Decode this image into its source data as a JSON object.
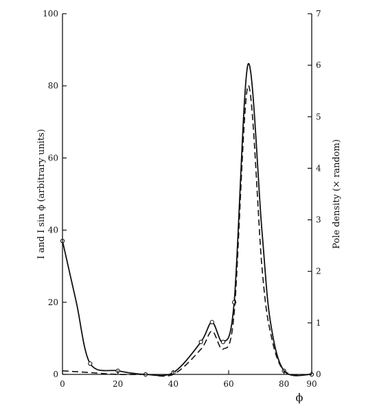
{
  "chart_data": {
    "type": "line",
    "xlabel": "ϕ",
    "ylabel_left": "I and I sin ϕ (arbitrary units)",
    "ylabel_right": "Pole density (× random)",
    "xlim": [
      0,
      90
    ],
    "ylim_left": [
      0,
      100
    ],
    "ylim_right": [
      0,
      7
    ],
    "x_ticks": [
      0,
      20,
      40,
      60,
      80,
      90
    ],
    "y_left_ticks": [
      0,
      20,
      40,
      60,
      80,
      100
    ],
    "y_right_ticks": [
      0,
      1,
      2,
      3,
      4,
      5,
      6,
      7
    ],
    "legend": "none",
    "grid": false,
    "series": [
      {
        "line_style": "solid",
        "markers": "open-circle",
        "axis": "left",
        "x": [
          0,
          5,
          10,
          20,
          30,
          40,
          50,
          54,
          58,
          62,
          67,
          72,
          75,
          80,
          90
        ],
        "y": [
          37,
          20,
          3,
          1,
          0,
          0.5,
          9,
          14.5,
          9,
          20,
          86,
          40,
          15,
          1,
          0
        ]
      },
      {
        "line_style": "dashed",
        "markers": "none",
        "axis": "left",
        "x": [
          0,
          10,
          20,
          30,
          40,
          50,
          54,
          58,
          62,
          67,
          72,
          75,
          80,
          90
        ],
        "y": [
          1,
          0.5,
          0,
          0,
          0,
          7,
          12,
          7,
          17,
          80,
          30,
          12,
          1,
          0
        ]
      }
    ]
  }
}
